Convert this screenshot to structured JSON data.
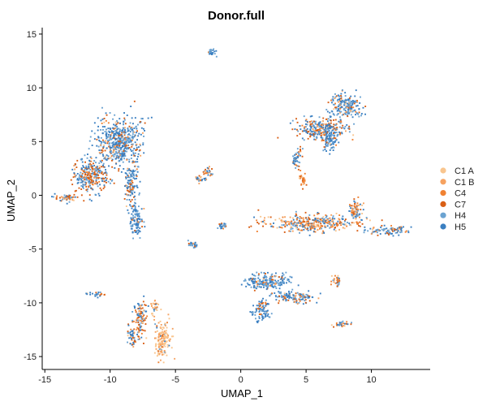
{
  "chart_data": {
    "type": "scatter",
    "title": "Donor.full",
    "xlabel": "UMAP_1",
    "ylabel": "UMAP_2",
    "xlim": [
      -15.2,
      14.5
    ],
    "ylim": [
      -16.2,
      15.6
    ],
    "x_ticks": [
      -15,
      -10,
      -5,
      0,
      5,
      10
    ],
    "y_ticks": [
      -15,
      -10,
      -5,
      0,
      5,
      10,
      15
    ],
    "grid": false,
    "legend_position": "right",
    "series": [
      {
        "name": "C1 A",
        "color": "#F9C58E"
      },
      {
        "name": "C1 B",
        "color": "#F6A260"
      },
      {
        "name": "C4",
        "color": "#F08132"
      },
      {
        "name": "C7",
        "color": "#D95F15"
      },
      {
        "name": "H4",
        "color": "#6BA3D1"
      },
      {
        "name": "H5",
        "color": "#3A7FC1"
      }
    ],
    "clusters": [
      {
        "cx": -9.3,
        "cy": 5.0,
        "rx": 1.6,
        "ry": 2.0,
        "w": [
          2,
          3,
          5,
          12,
          30,
          48
        ]
      },
      {
        "cx": -8.4,
        "cy": 1.2,
        "rx": 0.4,
        "ry": 2.0,
        "w": [
          2,
          3,
          5,
          15,
          25,
          50
        ]
      },
      {
        "cx": -8.0,
        "cy": -2.3,
        "rx": 0.45,
        "ry": 1.6,
        "w": [
          1,
          2,
          3,
          6,
          28,
          60
        ]
      },
      {
        "cx": -11.5,
        "cy": 1.8,
        "rx": 1.2,
        "ry": 1.5,
        "w": [
          2,
          4,
          8,
          30,
          26,
          30
        ]
      },
      {
        "cx": -13.2,
        "cy": -0.2,
        "rx": 0.9,
        "ry": 0.35,
        "w": [
          4,
          8,
          12,
          40,
          16,
          20
        ]
      },
      {
        "cx": 6.2,
        "cy": 6.2,
        "rx": 1.8,
        "ry": 0.9,
        "w": [
          2,
          5,
          10,
          25,
          20,
          38
        ]
      },
      {
        "cx": 6.8,
        "cy": 5.2,
        "rx": 0.5,
        "ry": 1.2,
        "w": [
          1,
          2,
          4,
          8,
          30,
          55
        ]
      },
      {
        "cx": 8.0,
        "cy": 8.3,
        "rx": 1.2,
        "ry": 1.0,
        "w": [
          2,
          4,
          6,
          14,
          34,
          40
        ]
      },
      {
        "cx": 4.3,
        "cy": 3.5,
        "rx": 0.35,
        "ry": 0.8,
        "w": [
          2,
          4,
          8,
          30,
          26,
          30
        ]
      },
      {
        "cx": 4.8,
        "cy": 1.5,
        "rx": 0.3,
        "ry": 0.6,
        "w": [
          10,
          30,
          40,
          15,
          3,
          2
        ]
      },
      {
        "cx": 5.5,
        "cy": -2.6,
        "rx": 3.2,
        "ry": 0.7,
        "w": [
          8,
          15,
          22,
          20,
          15,
          20
        ]
      },
      {
        "cx": 11.2,
        "cy": -3.3,
        "rx": 1.5,
        "ry": 0.35,
        "w": [
          4,
          10,
          15,
          15,
          20,
          36
        ]
      },
      {
        "cx": 8.8,
        "cy": -1.4,
        "rx": 0.5,
        "ry": 1.0,
        "w": [
          6,
          10,
          15,
          20,
          20,
          29
        ]
      },
      {
        "cx": 2.0,
        "cy": -8.0,
        "rx": 1.5,
        "ry": 0.8,
        "w": [
          1,
          2,
          4,
          8,
          35,
          50
        ]
      },
      {
        "cx": 4.0,
        "cy": -9.5,
        "rx": 1.5,
        "ry": 0.5,
        "w": [
          2,
          4,
          6,
          12,
          28,
          48
        ]
      },
      {
        "cx": 1.5,
        "cy": -10.8,
        "rx": 0.6,
        "ry": 0.9,
        "w": [
          2,
          3,
          5,
          10,
          30,
          50
        ]
      },
      {
        "cx": -7.7,
        "cy": -11.5,
        "rx": 0.45,
        "ry": 1.6,
        "w": [
          4,
          6,
          10,
          35,
          15,
          30
        ]
      },
      {
        "cx": -8.3,
        "cy": -13.2,
        "rx": 0.35,
        "ry": 0.8,
        "w": [
          4,
          8,
          12,
          20,
          20,
          36
        ]
      },
      {
        "cx": -6.0,
        "cy": -13.3,
        "rx": 0.6,
        "ry": 1.6,
        "w": [
          55,
          30,
          8,
          2,
          3,
          2
        ]
      },
      {
        "cx": -6.6,
        "cy": -10.4,
        "rx": 0.3,
        "ry": 0.6,
        "w": [
          30,
          30,
          14,
          10,
          8,
          8
        ]
      },
      {
        "cx": -2.2,
        "cy": 13.3,
        "rx": 0.35,
        "ry": 0.3,
        "w": [
          2,
          4,
          6,
          8,
          30,
          50
        ]
      },
      {
        "cx": -2.5,
        "cy": 2.2,
        "rx": 0.4,
        "ry": 0.35,
        "w": [
          8,
          12,
          16,
          30,
          16,
          18
        ]
      },
      {
        "cx": -3.2,
        "cy": 1.5,
        "rx": 0.35,
        "ry": 0.3,
        "w": [
          6,
          10,
          14,
          30,
          20,
          20
        ]
      },
      {
        "cx": -1.4,
        "cy": -2.9,
        "rx": 0.25,
        "ry": 0.25,
        "w": [
          2,
          4,
          6,
          20,
          30,
          38
        ]
      },
      {
        "cx": -3.7,
        "cy": -4.6,
        "rx": 0.3,
        "ry": 0.2,
        "w": [
          2,
          4,
          6,
          10,
          30,
          48
        ]
      },
      {
        "cx": -11.0,
        "cy": -9.2,
        "rx": 0.7,
        "ry": 0.2,
        "w": [
          2,
          4,
          6,
          14,
          30,
          44
        ]
      },
      {
        "cx": 7.8,
        "cy": -12.0,
        "rx": 0.7,
        "ry": 0.25,
        "w": [
          6,
          10,
          14,
          30,
          16,
          24
        ]
      },
      {
        "cx": 7.3,
        "cy": -8.0,
        "rx": 0.35,
        "ry": 0.6,
        "w": [
          8,
          14,
          20,
          30,
          12,
          16
        ]
      }
    ]
  }
}
